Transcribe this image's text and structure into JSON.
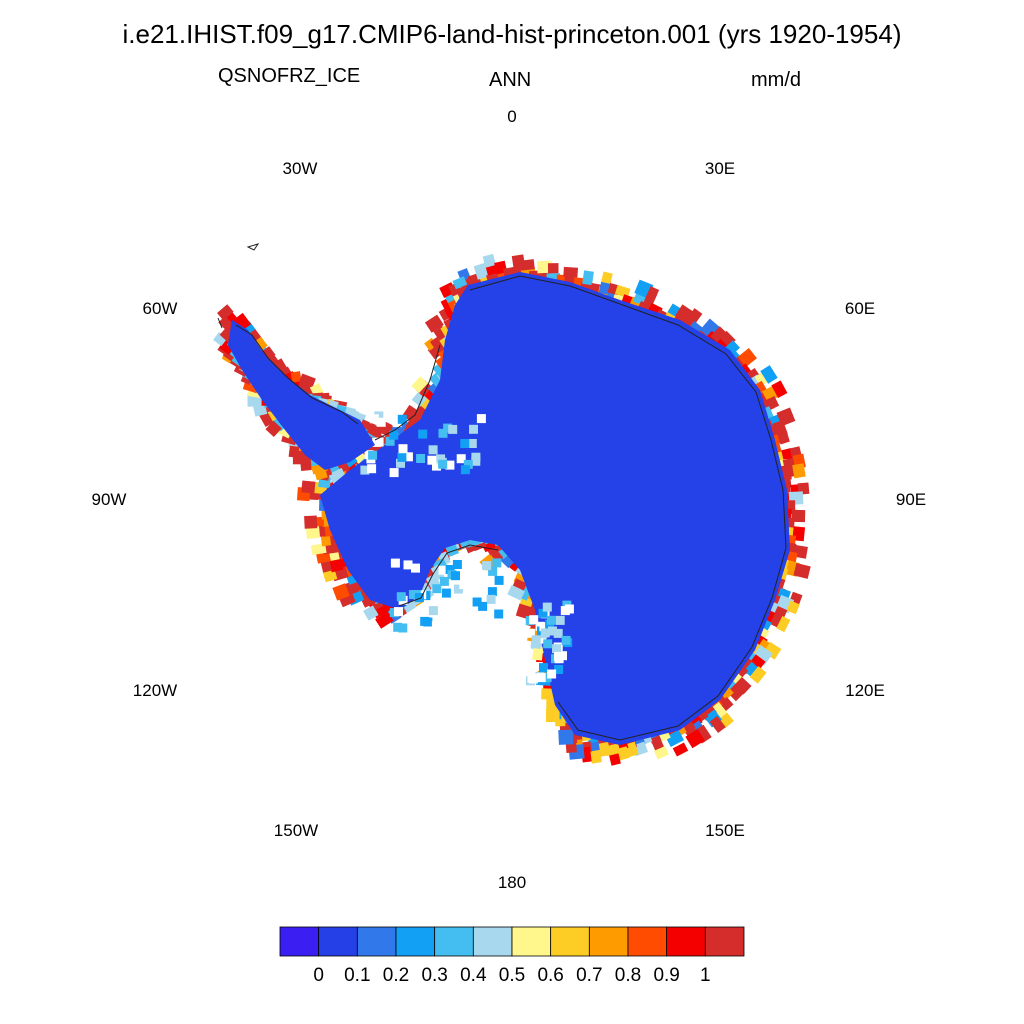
{
  "title": "i.e21.IHIST.f09_g17.CMIP6-land-hist-princeton.001 (yrs 1920-1954)",
  "subtitle": {
    "variable": "QSNOFRZ_ICE",
    "season": "ANN",
    "units": "mm/d"
  },
  "longitude_labels": {
    "lon_0": "0",
    "lon_30e": "30E",
    "lon_60e": "60E",
    "lon_90e": "90E",
    "lon_120e": "120E",
    "lon_150e": "150E",
    "lon_180": "180",
    "lon_150w": "150W",
    "lon_120w": "120W",
    "lon_90w": "90W",
    "lon_60w": "60W",
    "lon_30w": "30W"
  },
  "colorbar": {
    "colors": [
      "#3b1ff2",
      "#2440e6",
      "#3179eb",
      "#12a0f5",
      "#44bef0",
      "#a8d8ee",
      "#fff68c",
      "#fecd25",
      "#fe9b00",
      "#ff4c00",
      "#f40000",
      "#d52c2c"
    ],
    "labels": [
      "0",
      "0.1",
      "0.2",
      "0.3",
      "0.4",
      "0.5",
      "0.6",
      "0.7",
      "0.8",
      "0.9",
      "1"
    ]
  },
  "map": {
    "projection": "south-polar-stereographic",
    "region": "Antarctica",
    "interior_color": "#2541e8"
  }
}
